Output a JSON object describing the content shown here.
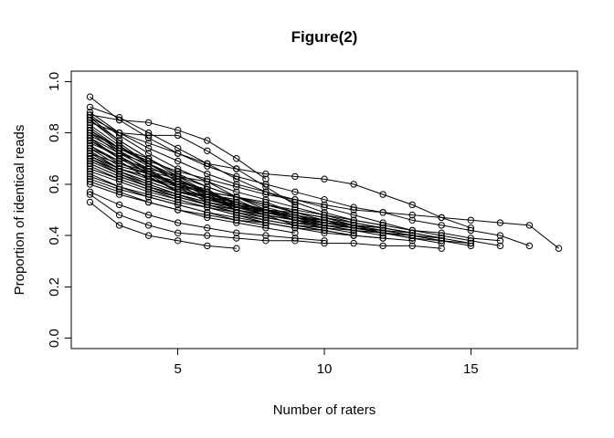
{
  "chart_data": {
    "type": "line",
    "title": "Figure(2)",
    "xlabel": "Number of raters",
    "ylabel": "Proportion of identical reads",
    "x_tick_values": [
      5,
      10,
      15
    ],
    "x_tick_labels": [
      "5",
      "10",
      "15"
    ],
    "y_tick_values": [
      0.0,
      0.2,
      0.4,
      0.6,
      0.8,
      1.0
    ],
    "y_tick_labels": [
      "0.0",
      "0.2",
      "0.4",
      "0.6",
      "0.8",
      "1.0"
    ],
    "xlim": [
      1.36,
      18.64
    ],
    "ylim": [
      -0.04,
      1.04
    ],
    "x_data_range": [
      2,
      18
    ],
    "grid": false,
    "legend": "none",
    "marker": "open-circle",
    "line_color": "#000000",
    "background": "#ffffff",
    "x_start": 2,
    "x_step": 1,
    "series": [
      {
        "y": [
          0.8,
          0.74,
          0.69,
          0.65,
          0.62,
          0.59,
          0.56,
          0.54,
          0.52,
          0.5,
          0.49,
          0.48,
          0.47,
          0.46,
          0.45,
          0.44,
          0.35
        ]
      },
      {
        "y": [
          0.94,
          0.85,
          0.78,
          0.72,
          0.67,
          0.63,
          0.6,
          0.57,
          0.54,
          0.51,
          0.49,
          0.46,
          0.44,
          0.42,
          0.4,
          0.36
        ]
      },
      {
        "y": [
          0.88,
          0.8,
          0.74,
          0.69,
          0.64,
          0.6,
          0.57,
          0.54,
          0.51,
          0.48,
          0.45,
          0.42,
          0.4,
          0.38,
          0.36
        ]
      },
      {
        "y": [
          0.72,
          0.68,
          0.64,
          0.6,
          0.57,
          0.55,
          0.52,
          0.5,
          0.48,
          0.46,
          0.44,
          0.42,
          0.41,
          0.39,
          0.38
        ]
      },
      {
        "y": [
          0.86,
          0.8,
          0.76,
          0.72,
          0.68,
          0.66,
          0.64,
          0.63,
          0.62,
          0.6,
          0.56,
          0.52,
          0.47,
          0.43
        ]
      },
      {
        "y": [
          0.78,
          0.72,
          0.66,
          0.63,
          0.57,
          0.55,
          0.5,
          0.49,
          0.47,
          0.44,
          0.43,
          0.41,
          0.39,
          0.37
        ]
      },
      {
        "y": [
          0.7,
          0.65,
          0.61,
          0.57,
          0.54,
          0.51,
          0.49,
          0.47,
          0.45,
          0.43,
          0.41,
          0.4,
          0.38,
          0.37
        ]
      },
      {
        "y": [
          0.63,
          0.59,
          0.56,
          0.53,
          0.51,
          0.49,
          0.47,
          0.45,
          0.44,
          0.42,
          0.41,
          0.39,
          0.38,
          0.36
        ]
      },
      {
        "y": [
          0.85,
          0.76,
          0.68,
          0.62,
          0.57,
          0.53,
          0.5,
          0.47,
          0.45,
          0.43,
          0.41,
          0.39,
          0.37
        ]
      },
      {
        "y": [
          0.77,
          0.71,
          0.65,
          0.6,
          0.56,
          0.53,
          0.5,
          0.48,
          0.46,
          0.44,
          0.42,
          0.4,
          0.38
        ]
      },
      {
        "y": [
          0.72,
          0.66,
          0.63,
          0.57,
          0.56,
          0.51,
          0.5,
          0.47,
          0.46,
          0.43,
          0.42,
          0.41,
          0.39
        ]
      },
      {
        "y": [
          0.68,
          0.63,
          0.59,
          0.56,
          0.53,
          0.5,
          0.48,
          0.46,
          0.45,
          0.43,
          0.42,
          0.4,
          0.39
        ]
      },
      {
        "y": [
          0.56,
          0.48,
          0.44,
          0.41,
          0.4,
          0.39,
          0.38,
          0.38,
          0.37,
          0.37,
          0.36,
          0.36,
          0.35
        ]
      },
      {
        "y": [
          0.87,
          0.79,
          0.72,
          0.66,
          0.61,
          0.57,
          0.54,
          0.51,
          0.48,
          0.45,
          0.43,
          0.41
        ]
      },
      {
        "y": [
          0.81,
          0.74,
          0.68,
          0.63,
          0.59,
          0.55,
          0.52,
          0.49,
          0.47,
          0.45,
          0.43,
          0.41
        ]
      },
      {
        "y": [
          0.76,
          0.71,
          0.64,
          0.61,
          0.55,
          0.53,
          0.49,
          0.48,
          0.45,
          0.44,
          0.41,
          0.4
        ]
      },
      {
        "y": [
          0.71,
          0.66,
          0.62,
          0.58,
          0.55,
          0.52,
          0.49,
          0.47,
          0.45,
          0.43,
          0.41,
          0.4
        ]
      },
      {
        "y": [
          0.66,
          0.62,
          0.58,
          0.55,
          0.52,
          0.5,
          0.48,
          0.46,
          0.44,
          0.42,
          0.41,
          0.39
        ]
      },
      {
        "y": [
          0.6,
          0.56,
          0.53,
          0.5,
          0.48,
          0.46,
          0.45,
          0.43,
          0.42,
          0.4,
          0.39,
          0.38
        ]
      },
      {
        "y": [
          0.9,
          0.86,
          0.8,
          0.74,
          0.68,
          0.62,
          0.57,
          0.53,
          0.49,
          0.46,
          0.44
        ]
      },
      {
        "y": [
          0.82,
          0.74,
          0.7,
          0.63,
          0.61,
          0.55,
          0.53,
          0.49,
          0.47,
          0.44,
          0.43
        ]
      },
      {
        "y": [
          0.75,
          0.68,
          0.65,
          0.59,
          0.57,
          0.52,
          0.5,
          0.47,
          0.46,
          0.43,
          0.42
        ]
      },
      {
        "y": [
          0.7,
          0.65,
          0.61,
          0.57,
          0.54,
          0.51,
          0.48,
          0.46,
          0.44,
          0.42,
          0.4
        ]
      },
      {
        "y": [
          0.65,
          0.61,
          0.57,
          0.54,
          0.51,
          0.48,
          0.46,
          0.44,
          0.42,
          0.4,
          0.39
        ]
      },
      {
        "y": [
          0.85,
          0.77,
          0.7,
          0.64,
          0.59,
          0.55,
          0.52,
          0.49,
          0.46,
          0.44
        ]
      },
      {
        "y": [
          0.79,
          0.73,
          0.65,
          0.62,
          0.56,
          0.54,
          0.49,
          0.47,
          0.44,
          0.43
        ]
      },
      {
        "y": [
          0.74,
          0.69,
          0.62,
          0.6,
          0.54,
          0.52,
          0.48,
          0.46,
          0.43,
          0.42
        ]
      },
      {
        "y": [
          0.69,
          0.64,
          0.6,
          0.56,
          0.53,
          0.5,
          0.47,
          0.45,
          0.43,
          0.41
        ]
      },
      {
        "y": [
          0.62,
          0.58,
          0.55,
          0.52,
          0.49,
          0.47,
          0.45,
          0.43,
          0.41,
          0.4
        ]
      },
      {
        "y": [
          0.86,
          0.77,
          0.7,
          0.64,
          0.59,
          0.55,
          0.51,
          0.48,
          0.45
        ]
      },
      {
        "y": [
          0.8,
          0.72,
          0.68,
          0.61,
          0.58,
          0.52,
          0.5,
          0.46,
          0.44
        ]
      },
      {
        "y": [
          0.74,
          0.67,
          0.64,
          0.57,
          0.55,
          0.5,
          0.48,
          0.44,
          0.43
        ]
      },
      {
        "y": [
          0.68,
          0.63,
          0.59,
          0.55,
          0.52,
          0.49,
          0.46,
          0.44,
          0.42
        ]
      },
      {
        "y": [
          0.57,
          0.52,
          0.48,
          0.45,
          0.43,
          0.41,
          0.4,
          0.39,
          0.38
        ]
      },
      {
        "y": [
          0.84,
          0.8,
          0.79,
          0.79,
          0.73,
          0.66,
          0.59,
          0.52
        ]
      },
      {
        "y": [
          0.78,
          0.7,
          0.66,
          0.59,
          0.57,
          0.51,
          0.49,
          0.46
        ]
      },
      {
        "y": [
          0.73,
          0.66,
          0.63,
          0.57,
          0.55,
          0.5,
          0.47,
          0.45
        ]
      },
      {
        "y": [
          0.67,
          0.62,
          0.58,
          0.54,
          0.51,
          0.48,
          0.45,
          0.43
        ]
      },
      {
        "y": [
          0.61,
          0.57,
          0.53,
          0.5,
          0.47,
          0.45,
          0.43,
          0.41
        ]
      },
      {
        "y": [
          0.87,
          0.85,
          0.84,
          0.81,
          0.77,
          0.7,
          0.62
        ]
      },
      {
        "y": [
          0.81,
          0.73,
          0.67,
          0.61,
          0.57,
          0.53,
          0.5
        ]
      },
      {
        "y": [
          0.75,
          0.69,
          0.62,
          0.59,
          0.53,
          0.51,
          0.48
        ]
      },
      {
        "y": [
          0.7,
          0.64,
          0.59,
          0.55,
          0.52,
          0.49,
          0.46
        ]
      },
      {
        "y": [
          0.64,
          0.59,
          0.55,
          0.52,
          0.49,
          0.46,
          0.44
        ]
      },
      {
        "y": [
          0.83,
          0.75,
          0.68,
          0.62,
          0.57,
          0.53
        ]
      },
      {
        "y": [
          0.77,
          0.7,
          0.64,
          0.59,
          0.55,
          0.51
        ]
      },
      {
        "y": [
          0.71,
          0.65,
          0.6,
          0.56,
          0.52,
          0.49
        ]
      },
      {
        "y": [
          0.53,
          0.44,
          0.4,
          0.38,
          0.36,
          0.35
        ]
      }
    ]
  }
}
